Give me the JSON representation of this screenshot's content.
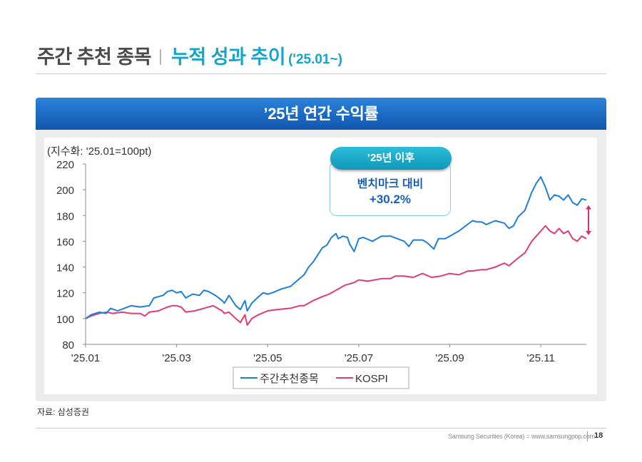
{
  "header": {
    "title": "주간 추천 종목",
    "subtitle": "누적 성과 추이",
    "period": "('25.01~)"
  },
  "panel": {
    "title": "’25년 연간 수익률"
  },
  "callout": {
    "pill": "’25년 이후",
    "line1": "벤치마크 대비",
    "line2": "+30.2%"
  },
  "source": "자료: 삼성증권",
  "footer": {
    "text": "Samsung Securities (Korea) = www.samsungpop.com",
    "page": "18"
  },
  "colors": {
    "series_pick": "#1e7fd8",
    "series_kospi": "#de3d6f",
    "arrow": "#d6336c",
    "accent": "#16a5c7"
  },
  "chart_data": {
    "type": "line",
    "unit_label": "(지수화: '25.01=100pt)",
    "ylim": [
      80,
      220
    ],
    "yticks": [
      "80",
      "100",
      "120",
      "140",
      "160",
      "180",
      "200",
      "220"
    ],
    "x_domain": [
      0,
      11
    ],
    "xticks": [
      {
        "label": "'25.01",
        "month": 0
      },
      {
        "label": "'25.03",
        "month": 2
      },
      {
        "label": "'25.05",
        "month": 4
      },
      {
        "label": "'25.07",
        "month": 6
      },
      {
        "label": "'25.09",
        "month": 8
      },
      {
        "label": "'25.11",
        "month": 10
      }
    ],
    "series": [
      {
        "name": "주간추천종목",
        "color": "#1e7fd8",
        "points": [
          [
            0,
            100
          ],
          [
            0.12,
            103
          ],
          [
            0.3,
            105
          ],
          [
            0.45,
            104
          ],
          [
            0.55,
            108
          ],
          [
            0.7,
            106
          ],
          [
            0.85,
            108
          ],
          [
            1.0,
            110
          ],
          [
            1.2,
            109
          ],
          [
            1.4,
            110
          ],
          [
            1.5,
            116
          ],
          [
            1.7,
            118
          ],
          [
            1.8,
            121
          ],
          [
            1.9,
            122
          ],
          [
            2.0,
            120
          ],
          [
            2.1,
            121
          ],
          [
            2.2,
            116
          ],
          [
            2.35,
            119
          ],
          [
            2.5,
            118
          ],
          [
            2.6,
            122
          ],
          [
            2.7,
            121
          ],
          [
            2.85,
            118
          ],
          [
            3.0,
            114
          ],
          [
            3.05,
            112
          ],
          [
            3.15,
            118
          ],
          [
            3.3,
            110
          ],
          [
            3.4,
            107
          ],
          [
            3.5,
            114
          ],
          [
            3.55,
            106
          ],
          [
            3.65,
            112
          ],
          [
            3.8,
            117
          ],
          [
            3.9,
            120
          ],
          [
            4.0,
            119
          ],
          [
            4.1,
            120
          ],
          [
            4.3,
            123
          ],
          [
            4.5,
            125
          ],
          [
            4.7,
            131
          ],
          [
            4.8,
            134
          ],
          [
            4.9,
            140
          ],
          [
            5.0,
            144
          ],
          [
            5.2,
            155
          ],
          [
            5.3,
            157
          ],
          [
            5.4,
            163
          ],
          [
            5.5,
            166
          ],
          [
            5.55,
            162
          ],
          [
            5.65,
            164
          ],
          [
            5.75,
            163
          ],
          [
            5.8,
            158
          ],
          [
            5.9,
            152
          ],
          [
            6.0,
            162
          ],
          [
            6.1,
            163
          ],
          [
            6.3,
            160
          ],
          [
            6.5,
            164
          ],
          [
            6.7,
            164
          ],
          [
            6.85,
            162
          ],
          [
            7.0,
            160
          ],
          [
            7.1,
            156
          ],
          [
            7.2,
            161
          ],
          [
            7.4,
            161
          ],
          [
            7.5,
            159
          ],
          [
            7.65,
            154
          ],
          [
            7.75,
            162
          ],
          [
            7.9,
            162
          ],
          [
            8.0,
            164
          ],
          [
            8.2,
            168
          ],
          [
            8.35,
            172
          ],
          [
            8.5,
            176
          ],
          [
            8.6,
            175
          ],
          [
            8.7,
            175
          ],
          [
            8.8,
            173
          ],
          [
            9.0,
            176
          ],
          [
            9.2,
            174
          ],
          [
            9.3,
            170
          ],
          [
            9.4,
            172
          ],
          [
            9.5,
            179
          ],
          [
            9.65,
            184
          ],
          [
            9.8,
            198
          ],
          [
            9.9,
            205
          ],
          [
            10.0,
            210
          ],
          [
            10.1,
            202
          ],
          [
            10.2,
            192
          ],
          [
            10.3,
            196
          ],
          [
            10.4,
            195
          ],
          [
            10.5,
            192
          ],
          [
            10.6,
            196
          ],
          [
            10.7,
            190
          ],
          [
            10.8,
            188
          ],
          [
            10.9,
            193
          ],
          [
            11.0,
            192
          ]
        ]
      },
      {
        "name": "KOSPI",
        "color": "#de3d6f",
        "points": [
          [
            0,
            100
          ],
          [
            0.12,
            102
          ],
          [
            0.3,
            104
          ],
          [
            0.45,
            105
          ],
          [
            0.6,
            104
          ],
          [
            0.8,
            105
          ],
          [
            1.0,
            104
          ],
          [
            1.2,
            104
          ],
          [
            1.3,
            102
          ],
          [
            1.4,
            105
          ],
          [
            1.6,
            106
          ],
          [
            1.8,
            109
          ],
          [
            1.9,
            110
          ],
          [
            2.0,
            110
          ],
          [
            2.1,
            109
          ],
          [
            2.2,
            105
          ],
          [
            2.4,
            106
          ],
          [
            2.6,
            108
          ],
          [
            2.8,
            110
          ],
          [
            3.0,
            106
          ],
          [
            3.05,
            104
          ],
          [
            3.15,
            105
          ],
          [
            3.3,
            100
          ],
          [
            3.4,
            97
          ],
          [
            3.5,
            103
          ],
          [
            3.55,
            95
          ],
          [
            3.65,
            100
          ],
          [
            3.8,
            103
          ],
          [
            4.0,
            106
          ],
          [
            4.2,
            107
          ],
          [
            4.5,
            108
          ],
          [
            4.7,
            110
          ],
          [
            4.8,
            110
          ],
          [
            5.0,
            114
          ],
          [
            5.2,
            117
          ],
          [
            5.35,
            119
          ],
          [
            5.5,
            122
          ],
          [
            5.7,
            126
          ],
          [
            5.9,
            128
          ],
          [
            6.0,
            130
          ],
          [
            6.2,
            129
          ],
          [
            6.5,
            131
          ],
          [
            6.7,
            131
          ],
          [
            6.8,
            133
          ],
          [
            7.0,
            133
          ],
          [
            7.2,
            132
          ],
          [
            7.4,
            135
          ],
          [
            7.6,
            132
          ],
          [
            7.8,
            133
          ],
          [
            8.0,
            135
          ],
          [
            8.2,
            134
          ],
          [
            8.4,
            137
          ],
          [
            8.5,
            137
          ],
          [
            8.7,
            138
          ],
          [
            8.8,
            138
          ],
          [
            9.0,
            140
          ],
          [
            9.2,
            143
          ],
          [
            9.3,
            141
          ],
          [
            9.5,
            147
          ],
          [
            9.65,
            151
          ],
          [
            9.8,
            160
          ],
          [
            9.9,
            164
          ],
          [
            10.0,
            168
          ],
          [
            10.1,
            172
          ],
          [
            10.2,
            168
          ],
          [
            10.3,
            166
          ],
          [
            10.4,
            170
          ],
          [
            10.5,
            166
          ],
          [
            10.6,
            168
          ],
          [
            10.7,
            162
          ],
          [
            10.8,
            160
          ],
          [
            10.9,
            164
          ],
          [
            11.0,
            162
          ]
        ]
      }
    ],
    "legend": [
      "주간추천종목",
      "KOSPI"
    ],
    "legend_position": "bottom-center",
    "annotation": "double arrow showing gap between series at latest point"
  }
}
